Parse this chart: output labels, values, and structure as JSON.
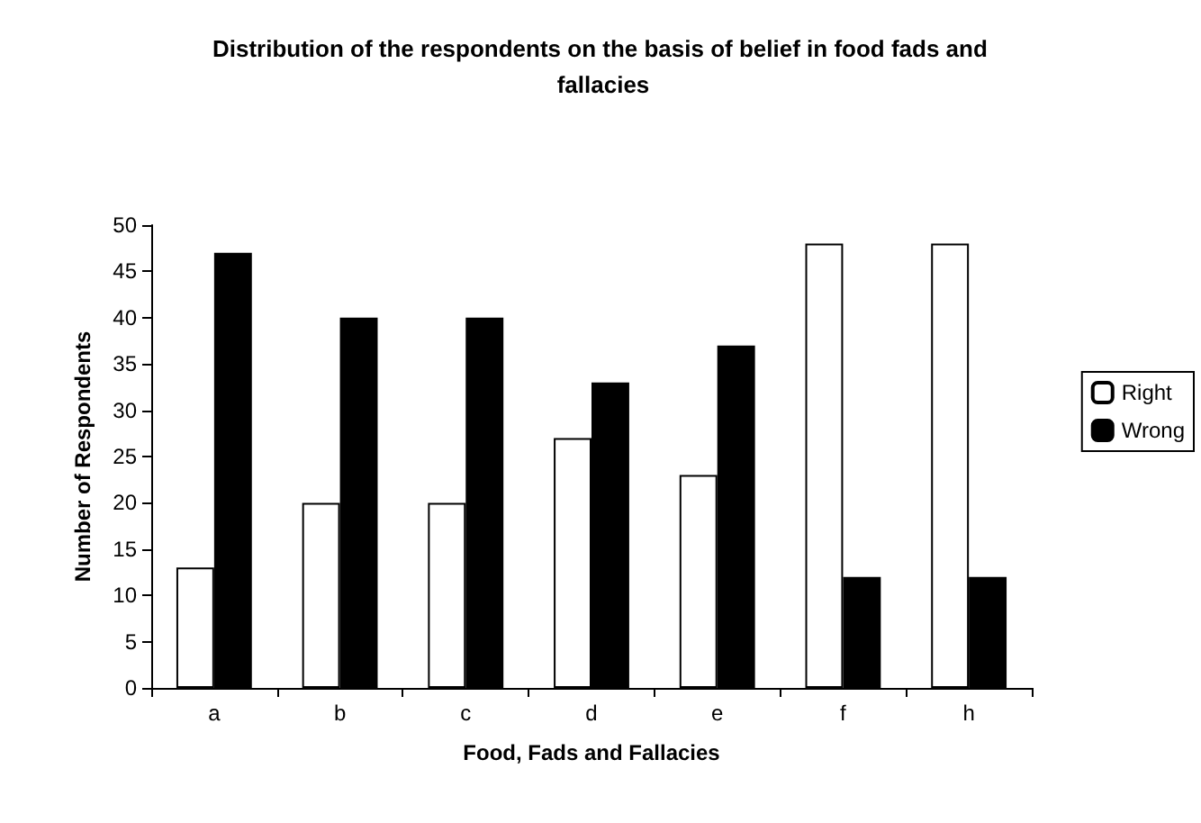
{
  "chart_data": {
    "type": "bar",
    "title": "Distribution of the respondents on the basis of belief in food fads and fallacies",
    "xlabel": "Food, Fads and Fallacies",
    "ylabel": "Number of Respondents",
    "categories": [
      "a",
      "b",
      "c",
      "d",
      "e",
      "f",
      "h"
    ],
    "series": [
      {
        "name": "Right",
        "color": "#ffffff",
        "values": [
          13,
          20,
          20,
          27,
          23,
          48,
          48
        ]
      },
      {
        "name": "Wrong",
        "color": "#000000",
        "values": [
          47,
          40,
          40,
          33,
          37,
          12,
          12
        ]
      }
    ],
    "ylim": [
      0,
      50
    ],
    "yticks": [
      0,
      5,
      10,
      15,
      20,
      25,
      30,
      35,
      40,
      45,
      50
    ],
    "grid": false,
    "legend": "right"
  }
}
